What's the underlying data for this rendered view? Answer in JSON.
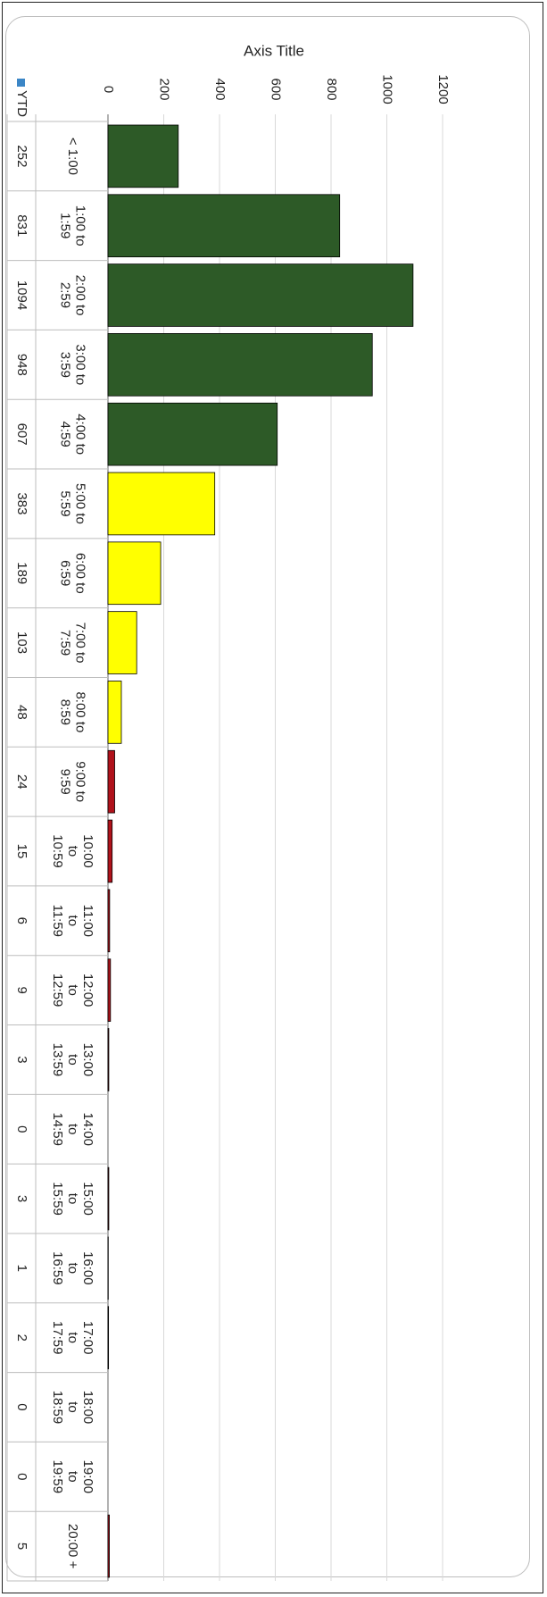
{
  "chart_data": {
    "type": "bar",
    "orientation": "rotated-90-clockwise",
    "title": "",
    "value_axis_title": "Axis Title",
    "value_axis_ticks": [
      0,
      200,
      400,
      600,
      800,
      1000,
      1200
    ],
    "ylim": [
      0,
      1200
    ],
    "grid": true,
    "legend": {
      "placement": "left of data table",
      "entries": [
        {
          "name": "YTD",
          "color": "#3b86c6"
        }
      ]
    },
    "categories": [
      [
        "< 1:00"
      ],
      [
        "1:00 to",
        "1:59"
      ],
      [
        "2:00 to",
        "2:59"
      ],
      [
        "3:00 to",
        "3:59"
      ],
      [
        "4:00 to",
        "4:59"
      ],
      [
        "5:00 to",
        "5:59"
      ],
      [
        "6:00 to",
        "6:59"
      ],
      [
        "7:00 to",
        "7:59"
      ],
      [
        "8:00 to",
        "8:59"
      ],
      [
        "9:00 to",
        "9:59"
      ],
      [
        "10:00",
        "to",
        "10:59"
      ],
      [
        "11:00",
        "to",
        "11:59"
      ],
      [
        "12:00",
        "to",
        "12:59"
      ],
      [
        "13:00",
        "to",
        "13:59"
      ],
      [
        "14:00",
        "to",
        "14:59"
      ],
      [
        "15:00",
        "to",
        "15:59"
      ],
      [
        "16:00",
        "to",
        "16:59"
      ],
      [
        "17:00",
        "to",
        "17:59"
      ],
      [
        "18:00",
        "to",
        "18:59"
      ],
      [
        "19:00",
        "to",
        "19:59"
      ],
      [
        "20:00 +"
      ]
    ],
    "series": [
      {
        "name": "YTD",
        "values": [
          252,
          831,
          1094,
          948,
          607,
          383,
          189,
          103,
          48,
          24,
          15,
          6,
          9,
          3,
          0,
          3,
          1,
          2,
          0,
          0,
          5
        ]
      }
    ],
    "bar_colors": [
      "#2d5a27",
      "#2d5a27",
      "#2d5a27",
      "#2d5a27",
      "#2d5a27",
      "#ffff00",
      "#ffff00",
      "#ffff00",
      "#ffff00",
      "#b0121b",
      "#b0121b",
      "#b0121b",
      "#b0121b",
      "#b0121b",
      "#b0121b",
      "#b0121b",
      "#b0121b",
      "#b0121b",
      "#b0121b",
      "#b0121b",
      "#b0121b"
    ],
    "data_table": true
  }
}
